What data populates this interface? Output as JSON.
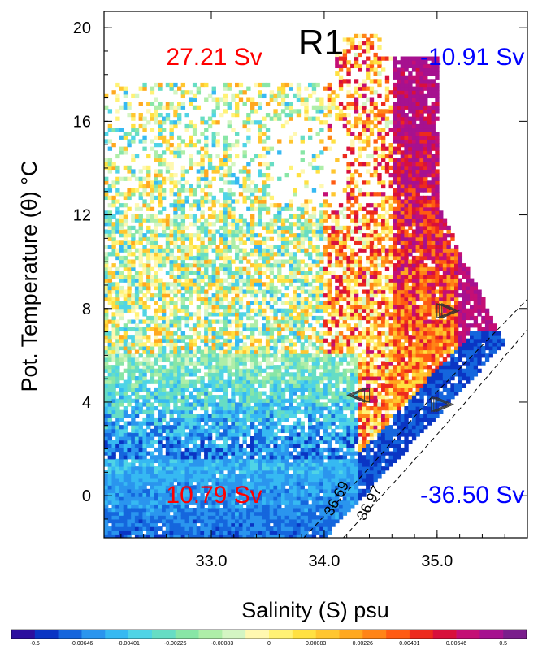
{
  "chart_data": {
    "type": "heatmap",
    "title": "R1",
    "xlabel": "Salinity (S) psu",
    "ylabel": "Pot. Temperature (θ) °C",
    "xlim": [
      32.05,
      35.8
    ],
    "ylim": [
      -1.8,
      20.7
    ],
    "x_ticks": [
      33.0,
      34.0,
      35.0
    ],
    "x_tick_labels": [
      "33.0",
      "34.0",
      "35.0"
    ],
    "y_ticks": [
      0,
      4,
      8,
      12,
      16,
      20
    ],
    "y_tick_labels": [
      "0",
      "4",
      "8",
      "12",
      "16",
      "20"
    ],
    "annotations": [
      {
        "text": "27.21 Sv",
        "color": "#ff0000",
        "x": 32.6,
        "y": 18.4
      },
      {
        "text": "-10.91 Sv",
        "color": "#0000ff",
        "x": 34.85,
        "y": 18.4
      },
      {
        "text": "10.79 Sv",
        "color": "#ff0000",
        "x": 32.6,
        "y": -0.3
      },
      {
        "text": "-36.50 Sv",
        "color": "#0000ff",
        "x": 34.85,
        "y": -0.3
      }
    ],
    "density_contours": [
      {
        "label": "36.69",
        "points": [
          [
            33.82,
            -1.8
          ],
          [
            34.4,
            1.2
          ],
          [
            34.95,
            4.2
          ],
          [
            35.8,
            8.4
          ]
        ],
        "label_at": [
          34.07,
          -0.9
        ]
      },
      {
        "label": "36.97",
        "points": [
          [
            34.17,
            -1.8
          ],
          [
            34.7,
            1.0
          ],
          [
            35.2,
            3.7
          ],
          [
            35.8,
            7.1
          ]
        ],
        "label_at": [
          34.36,
          -1.1
        ]
      }
    ],
    "arrows": [
      {
        "x": 35.1,
        "y": 7.9,
        "direction": "right"
      },
      {
        "x": 34.3,
        "y": 4.3,
        "direction": "left"
      },
      {
        "x": 35.05,
        "y": 3.9,
        "direction": "right"
      }
    ],
    "colorbar": {
      "labels": [
        "-0.5",
        "-0.00646",
        "-0.00401",
        "-0.00226",
        "-0.00083",
        "0",
        "0.00083",
        "0.00226",
        "0.00401",
        "0.00646",
        "0.5"
      ],
      "colors": [
        "#2c0f9e",
        "#0a35c4",
        "#1566dd",
        "#2a95ee",
        "#36b9f2",
        "#4fd4e6",
        "#66ddc4",
        "#88e6a6",
        "#aeeea8",
        "#d4f5c3",
        "#fff8b0",
        "#fff275",
        "#ffe141",
        "#ffc62f",
        "#ffa81f",
        "#ff8417",
        "#ff5b12",
        "#ed2a1d",
        "#d8103c",
        "#c40f75",
        "#a6118f",
        "#7a1d8c"
      ]
    }
  }
}
